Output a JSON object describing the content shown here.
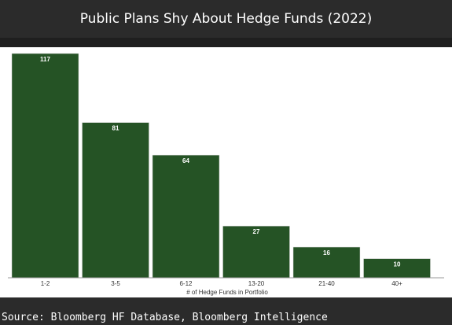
{
  "title": "Public Plans Shy About Hedge Funds (2022)",
  "source": "Source: Bloomberg HF Database, Bloomberg Intelligence",
  "colors": {
    "bar": "#255325",
    "bar_stroke": "#d9d9d9",
    "background": "#2b2b2b",
    "plot_background": "#ffffff"
  },
  "chart_data": {
    "type": "bar",
    "title": "Public Plans Shy About Hedge Funds (2022)",
    "xlabel": "# of Hedge Funds in Portfolio",
    "ylabel": "",
    "categories": [
      "1-2",
      "3-5",
      "6-12",
      "13-20",
      "21-40",
      "40+"
    ],
    "values": [
      117,
      81,
      64,
      27,
      16,
      10
    ],
    "data_labels": [
      "117",
      "81",
      "64",
      "27",
      "16",
      "10"
    ],
    "ylim": [
      0,
      117
    ],
    "grid": false,
    "legend": "none"
  }
}
